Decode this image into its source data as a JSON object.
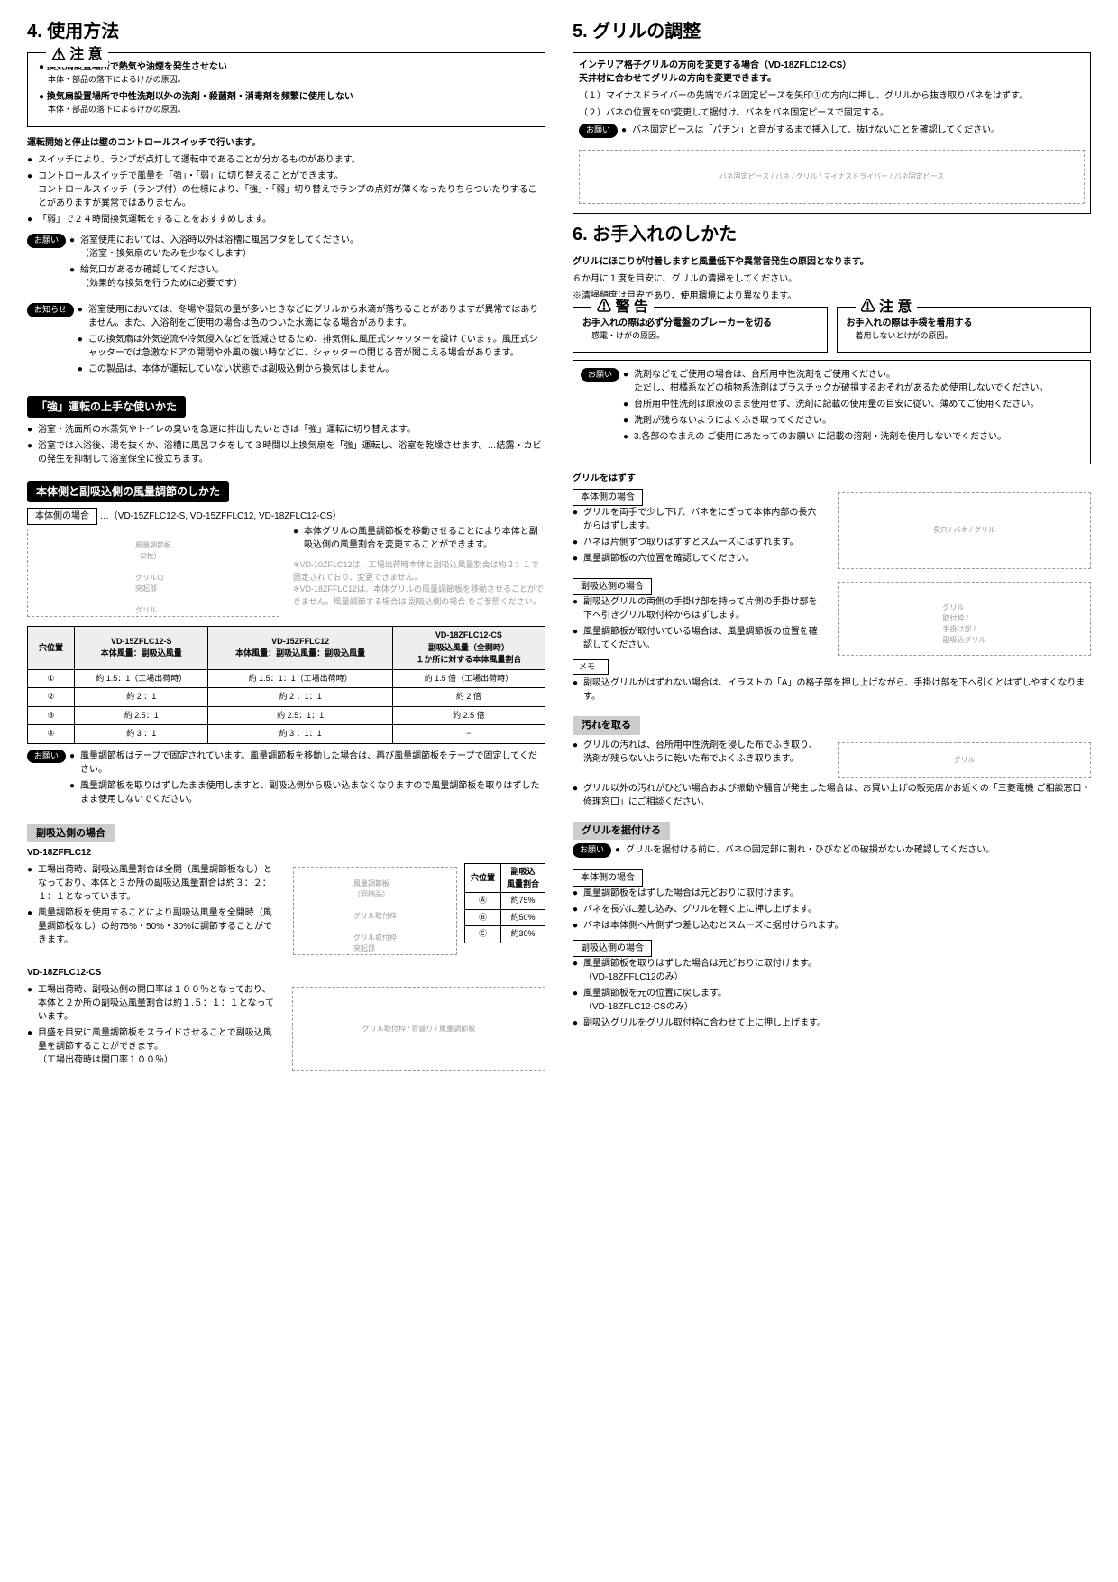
{
  "section4": {
    "title": "4. 使用方法",
    "caution": {
      "header": "注 意",
      "items": [
        {
          "bold": "換気扇設置場所で熱気や油煙を発生させない",
          "sub": "本体・部品の落下によるけがの原因。"
        },
        {
          "bold": "換気扇設置場所で中性洗剤以外の洗剤・殺菌剤・消毒剤を頻繁に使用しない",
          "sub": "本体・部品の落下によるけがの原因。"
        }
      ]
    },
    "intro": "運転開始と停止は壁のコントロールスイッチで行います。",
    "intro_bullets": [
      "スイッチにより、ランプが点灯して運転中であることが分かるものがあります。",
      "コントロールスイッチで風量を「強」・「弱」に切り替えることができます。\nコントロールスイッチ（ランプ付）の仕様により、「強」・「弱」切り替えでランプの点灯が薄くなったりちらついたりすることがありますが異常ではありません。",
      "「弱」で２４時間換気運転をすることをおすすめします。"
    ],
    "onegai": {
      "label": "お願い",
      "bullets": [
        "浴室使用においては、入浴時以外は浴槽に風呂フタをしてください。\n（浴室・換気扇のいたみを少なくします）",
        "給気口があるか確認してください。\n（効果的な換気を行うために必要です）"
      ]
    },
    "oshirase": {
      "label": "お知らせ",
      "bullets": [
        "浴室使用においては、冬場や湿気の量が多いときなどにグリルから水滴が落ちることがありますが異常ではありません。また、入浴剤をご使用の場合は色のついた水滴になる場合があります。",
        "この換気扇は外気逆流や冷気侵入などを低減させるため、排気側に風圧式シャッターを設けています。風圧式シャッターでは急激なドアの開閉や外風の強い時などに、シャッターの閉じる音が聞こえる場合があります。",
        "この製品は、本体が運転していない状態では副吸込側から換気はしません。"
      ]
    },
    "strong_header": "「強」運転の上手な使いかた",
    "strong_bullets": [
      "浴室・洗面所の水蒸気やトイレの臭いを急速に排出したいときは「強」運転に切り替えます。",
      "浴室では入浴後、湯を抜くか、浴槽に風呂フタをして３時間以上換気扇を「強」運転し、浴室を乾燥させます。…結露・カビの発生を抑制して浴室保全に役立ちます。"
    ],
    "airflow_header": "本体側と副吸込側の風量調節のしかた",
    "main_side_label": "本体側の場合",
    "main_side_models": "…（VD-15ZFLC12-S, VD-15ZFFLC12, VD-18ZFLC12-CS）",
    "diagram1_labels": [
      "風量調節板\n（2枚）",
      "グリルの\n突起部",
      "グリル"
    ],
    "main_side_bullets": [
      "本体グリルの風量調節板を移動させることにより本体と副吸込側の風量割合を変更することができます。"
    ],
    "main_side_notes": [
      "※VD-10ZFLC12は、工場出荷時本体と副吸込風量割合は約２：１で固定されており、変更できません。",
      "※VD-18ZFFLC12は、本体グリルの風量調節板を移動させることができません。風量調節する場合は 副吸込側の場合  をご参照ください。"
    ],
    "table1": {
      "headers": [
        "穴位置",
        "VD-15ZFLC12-S\n本体風量：副吸込風量",
        "VD-15ZFFLC12\n本体風量：副吸込風量：副吸込風量",
        "VD-18ZFLC12-CS\n副吸込風量（全開時）\n１か所に対する本体風量割合"
      ],
      "rows": [
        [
          "①",
          "約 1.5：1（工場出荷時）",
          "約 1.5：1：1（工場出荷時）",
          "約 1.5 倍（工場出荷時）"
        ],
        [
          "②",
          "約 2 ：1",
          "約 2 ：1：1",
          "約 2  倍"
        ],
        [
          "③",
          "約 2.5：1",
          "約 2.5：1：1",
          "約 2.5 倍"
        ],
        [
          "④",
          "約 3 ：1",
          "約 3 ：1：1",
          "−"
        ]
      ]
    },
    "table1_onegai": {
      "label": "お願い",
      "bullets": [
        "風量調節板はテープで固定されています。風量調節板を移動した場合は、再び風量調節板をテープで固定してください。",
        "風量調節板を取りはずしたまま使用しますと、副吸込側から吸い込まなくなりますので風量調節板を取りはずしたまま使用しないでください。"
      ]
    },
    "sub_side_label": "副吸込側の場合",
    "sub1_model": "VD-18ZFFLC12",
    "sub1_bullets": [
      "工場出荷時、副吸込風量割合は全開（風量調節板なし）となっており、本体と３か所の副吸込風量割合は約３：２：１：１となっています。",
      "風量調節板を使用することにより副吸込風量を全開時（風量調節板なし）の約75%・50%・30%に調節することができます。"
    ],
    "sub1_diagram_labels": [
      "風量調節板\n（同梱品）",
      "グリル取付枠",
      "グリル取付枠\n突起部"
    ],
    "sub1_table": {
      "headers": [
        "穴位置",
        "副吸込\n風量割合"
      ],
      "rows": [
        [
          "Ⓐ",
          "約75%"
        ],
        [
          "Ⓑ",
          "約50%"
        ],
        [
          "Ⓒ",
          "約30%"
        ]
      ]
    },
    "sub2_model": "VD-18ZFLC12-CS",
    "sub2_bullets": [
      "工場出荷時、副吸込側の開口率は１００％となっており、本体と２か所の副吸込風量割合は約１.５：１：１となっています。",
      "目盛を目安に風量調節板をスライドさせることで副吸込風量を調節することができます。\n（工場出荷時は開口率１００％）"
    ],
    "sub2_diagram_labels": [
      "グリル取付枠",
      "目盛り",
      "風量調節板"
    ]
  },
  "section5": {
    "title": "5. グリルの調整",
    "box_text": "インテリア格子グリルの方向を変更する場合（VD-18ZFLC12-CS）\n天井材に合わせてグリルの方向を変更できます。",
    "steps": [
      "（１）マイナスドライバーの先端でバネ固定ピースを矢印①の方向に押し、グリルから抜き取りバネをはずす。",
      "（２）バネの位置を90°変更して据付け、バネをバネ固定ピースで固定する。"
    ],
    "onegai": {
      "label": "お願い",
      "text": "バネ固定ピースは「パチン」と音がするまで挿入して、抜けないことを確認してください。"
    },
    "diagram_labels": [
      "バネ固定ピース",
      "バネ",
      "グリル",
      "マイナスドライバー",
      "バネ固定ピース"
    ]
  },
  "section6": {
    "title": "6. お手入れのしかた",
    "intro_bold": "グリルにほこりが付着しますと風量低下や異常音発生の原因となります。",
    "intro_sub1": "６か月に１度を目安に、グリルの清掃をしてください。",
    "intro_sub2": "※清掃頻度は目安であり、使用環境により異なります。",
    "warn1": {
      "header": "警 告",
      "bold": "お手入れの際は必ず分電盤のブレーカーを切る",
      "sub": "感電・けがの原因。"
    },
    "warn2": {
      "header": "注 意",
      "bold": "お手入れの際は手袋を着用する",
      "sub": "着用しないとけがの原因。"
    },
    "onegai": {
      "label": "お願い",
      "bullets": [
        "洗剤などをご使用の場合は、台所用中性洗剤をご使用ください。\nただし、柑橘系などの植物系洗剤はプラスチックが破損するおそれがあるため使用しないでください。",
        "台所用中性洗剤は原液のまま使用せず、洗剤に記載の使用量の目安に従い、薄めてご使用ください。",
        "洗剤が残らないようによくふき取ってください。",
        "3.各部のなまえの  ご使用にあたってのお願い  に記載の溶剤・洗剤を使用しないでください。"
      ]
    },
    "remove_header": "グリルをはずす",
    "remove_main_label": "本体側の場合",
    "remove_main_bullets": [
      "グリルを両手で少し下げ、バネをにぎって本体内部の長穴からはずします。",
      "バネは片側ずつ取りはずすとスムーズにはずれます。",
      "風量調節板の穴位置を確認してください。"
    ],
    "remove_main_diagram_labels": [
      "長穴",
      "バネ",
      "グリル"
    ],
    "remove_sub_label": "副吸込側の場合",
    "remove_sub_bullets": [
      "副吸込グリルの両側の手掛け部を持って片側の手掛け部を下へ引きグリル取付枠からはずします。",
      "風量調節板が取付いている場合は、風量調節板の位置を確認してください。"
    ],
    "remove_sub_diagram_labels": [
      "グリル\n取付枠",
      "手掛け部",
      "副吸込グリル"
    ],
    "memo_label": "メモ",
    "memo_text": "副吸込グリルがはずれない場合は、イラストの「A」の格子部を押し上げながら、手掛け部を下へ引くとはずしやすくなります。",
    "clean_header": "汚れを取る",
    "clean_bullets": [
      "グリルの汚れは、台所用中性洗剤を浸した布でふき取り、洗剤が残らないように乾いた布でよくふき取ります。",
      "グリル以外の汚れがひどい場合および振動や騒音が発生した場合は、お買い上げの販売店かお近くの「三菱電機 ご相談窓口・修理窓口」にご相談ください。"
    ],
    "clean_diagram_label": "グリル",
    "attach_header": "グリルを据付ける",
    "attach_onegai": {
      "label": "お願い",
      "text": "グリルを据付ける前に、バネの固定部に割れ・ひびなどの破損がないか確認してください。"
    },
    "attach_main_label": "本体側の場合",
    "attach_main_bullets": [
      "風量調節板をはずした場合は元どおりに取付けます。",
      "バネを長穴に差し込み、グリルを軽く上に押し上げます。",
      "バネは本体側へ片側ずつ差し込むとスムーズに据付けられます。"
    ],
    "attach_sub_label": "副吸込側の場合",
    "attach_sub_bullets": [
      "風量調節板を取りはずした場合は元どおりに取付けます。\n（VD-18ZFFLC12のみ）",
      "風量調節板を元の位置に戻します。\n（VD-18ZFLC12-CSのみ）",
      "副吸込グリルをグリル取付枠に合わせて上に押し上げます。"
    ]
  }
}
